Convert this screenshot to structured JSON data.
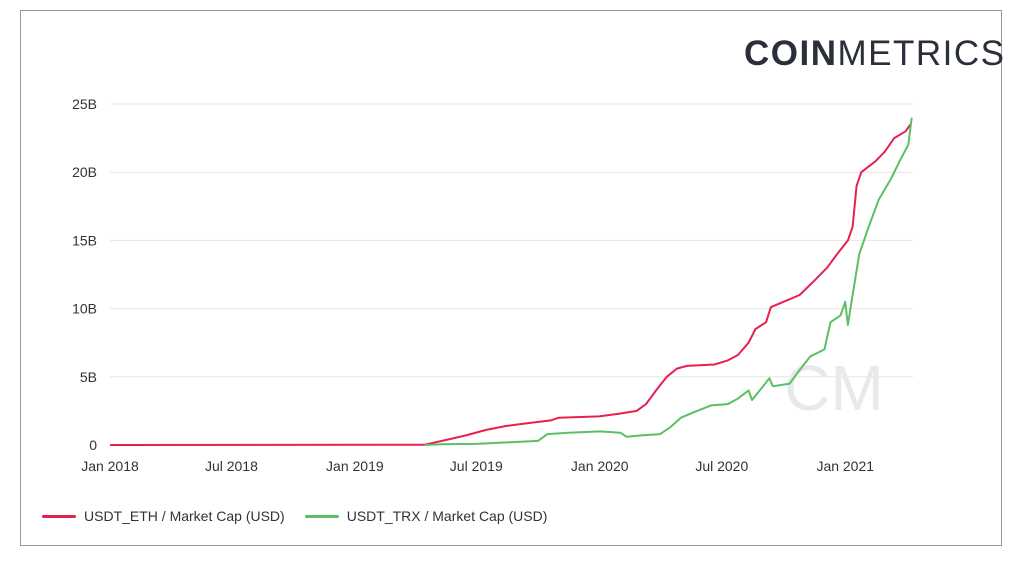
{
  "logo": {
    "bold": "COIN",
    "light": "METRICS"
  },
  "colors": {
    "eth": "#e8204f",
    "trx": "#5cbf63",
    "grid": "#e6e6e6",
    "watermark": "#e9e9e9"
  },
  "watermark": "CM",
  "chart_data": {
    "type": "line",
    "title": "",
    "xlabel": "",
    "ylabel": "",
    "ylim": [
      0,
      25
    ],
    "yunit": "B",
    "yticks": [
      "0",
      "5B",
      "10B",
      "15B",
      "20B",
      "25B"
    ],
    "xticks": [
      "Jan 2018",
      "Jul 2018",
      "Jan 2019",
      "Jul 2019",
      "Jan 2020",
      "Jul 2020",
      "Jan 2021"
    ],
    "x_range": [
      "2018-01-01",
      "2021-04-12"
    ],
    "grid": "horizontal",
    "legend_position": "bottom-left",
    "series": [
      {
        "name": "USDT_ETH / Market Cap (USD)",
        "points": [
          [
            "2018-01-01",
            0.0
          ],
          [
            "2019-04-15",
            0.02
          ],
          [
            "2019-05-01",
            0.2
          ],
          [
            "2019-05-20",
            0.4
          ],
          [
            "2019-06-15",
            0.7
          ],
          [
            "2019-07-15",
            1.1
          ],
          [
            "2019-08-15",
            1.4
          ],
          [
            "2019-09-15",
            1.6
          ],
          [
            "2019-10-20",
            1.8
          ],
          [
            "2019-11-01",
            2.0
          ],
          [
            "2019-12-31",
            2.1
          ],
          [
            "2020-01-31",
            2.3
          ],
          [
            "2020-02-25",
            2.5
          ],
          [
            "2020-03-10",
            3.0
          ],
          [
            "2020-03-25",
            4.0
          ],
          [
            "2020-04-10",
            5.0
          ],
          [
            "2020-04-25",
            5.6
          ],
          [
            "2020-05-10",
            5.8
          ],
          [
            "2020-06-20",
            5.9
          ],
          [
            "2020-07-10",
            6.2
          ],
          [
            "2020-07-25",
            6.6
          ],
          [
            "2020-08-10",
            7.5
          ],
          [
            "2020-08-20",
            8.5
          ],
          [
            "2020-09-05",
            9.0
          ],
          [
            "2020-09-12",
            10.1
          ],
          [
            "2020-10-01",
            10.5
          ],
          [
            "2020-10-25",
            11.0
          ],
          [
            "2020-11-15",
            12.0
          ],
          [
            "2020-12-05",
            13.0
          ],
          [
            "2020-12-20",
            14.0
          ],
          [
            "2021-01-05",
            15.0
          ],
          [
            "2021-01-12",
            16.0
          ],
          [
            "2021-01-18",
            19.0
          ],
          [
            "2021-01-25",
            20.0
          ],
          [
            "2021-02-15",
            20.8
          ],
          [
            "2021-03-01",
            21.5
          ],
          [
            "2021-03-15",
            22.5
          ],
          [
            "2021-04-01",
            23.0
          ],
          [
            "2021-04-08",
            23.5
          ]
        ]
      },
      {
        "name": "USDT_TRX / Market Cap (USD)",
        "points": [
          [
            "2019-04-15",
            0.0
          ],
          [
            "2019-05-10",
            0.05
          ],
          [
            "2019-07-01",
            0.08
          ],
          [
            "2019-10-01",
            0.3
          ],
          [
            "2019-10-15",
            0.8
          ],
          [
            "2019-11-15",
            0.9
          ],
          [
            "2020-01-01",
            1.0
          ],
          [
            "2020-02-01",
            0.9
          ],
          [
            "2020-02-10",
            0.6
          ],
          [
            "2020-03-01",
            0.7
          ],
          [
            "2020-03-31",
            0.8
          ],
          [
            "2020-04-15",
            1.3
          ],
          [
            "2020-05-01",
            2.0
          ],
          [
            "2020-05-20",
            2.4
          ],
          [
            "2020-06-15",
            2.9
          ],
          [
            "2020-07-10",
            3.0
          ],
          [
            "2020-07-25",
            3.4
          ],
          [
            "2020-08-10",
            4.0
          ],
          [
            "2020-08-15",
            3.3
          ],
          [
            "2020-08-25",
            3.9
          ],
          [
            "2020-09-10",
            4.9
          ],
          [
            "2020-09-15",
            4.3
          ],
          [
            "2020-10-10",
            4.5
          ],
          [
            "2020-10-25",
            5.5
          ],
          [
            "2020-11-10",
            6.5
          ],
          [
            "2020-12-01",
            7.0
          ],
          [
            "2020-12-10",
            9.0
          ],
          [
            "2020-12-25",
            9.5
          ],
          [
            "2021-01-01",
            10.5
          ],
          [
            "2021-01-05",
            8.8
          ],
          [
            "2021-01-12",
            11.0
          ],
          [
            "2021-01-22",
            14.0
          ],
          [
            "2021-02-05",
            16.0
          ],
          [
            "2021-02-20",
            18.0
          ],
          [
            "2021-03-10",
            19.5
          ],
          [
            "2021-03-25",
            21.0
          ],
          [
            "2021-04-05",
            22.0
          ],
          [
            "2021-04-10",
            24.0
          ]
        ]
      }
    ]
  }
}
